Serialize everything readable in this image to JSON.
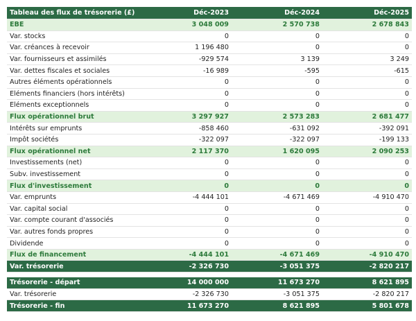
{
  "table": {
    "header": [
      "Tableau des flux de trésorerie (£)",
      "Déc-2023",
      "Déc-2024",
      "Déc-2025"
    ],
    "rows": [
      [
        "EBE",
        "3 048 009",
        "2 570 738",
        "2 678 843"
      ],
      [
        "Var. stocks",
        "0",
        "0",
        "0"
      ],
      [
        "Var. créances à recevoir",
        "1 196 480",
        "0",
        "0"
      ],
      [
        "Var. fournisseurs et assimilés",
        "-929 574",
        "3 139",
        "3 249"
      ],
      [
        "Var. dettes fiscales et sociales",
        "-16 989",
        "-595",
        "-615"
      ],
      [
        "Autres éléments opérationnels",
        "0",
        "0",
        "0"
      ],
      [
        "Eléments financiers (hors intérêts)",
        "0",
        "0",
        "0"
      ],
      [
        "Eléments exceptionnels",
        "0",
        "0",
        "0"
      ],
      [
        "Flux opérationnel brut",
        "3 297 927",
        "2 573 283",
        "2 681 477"
      ],
      [
        "Intérêts sur emprunts",
        "-858 460",
        "-631 092",
        "-392 091"
      ],
      [
        "Impôt sociétés",
        "-322 097",
        "-322 097",
        "-199 133"
      ],
      [
        "Flux opérationnel net",
        "2 117 370",
        "1 620 095",
        "2 090 253"
      ],
      [
        "Investissements (net)",
        "0",
        "0",
        "0"
      ],
      [
        "Subv. investissement",
        "0",
        "0",
        "0"
      ],
      [
        "Flux d'investissement",
        "0",
        "0",
        "0"
      ],
      [
        "Var. emprunts",
        "-4 444 101",
        "-4 671 469",
        "-4 910 470"
      ],
      [
        "Var. capital social",
        "0",
        "0",
        "0"
      ],
      [
        "Var. compte courant d'associés",
        "0",
        "0",
        "0"
      ],
      [
        "Var. autres fonds propres",
        "0",
        "0",
        "0"
      ],
      [
        "Dividende",
        "0",
        "0",
        "0"
      ],
      [
        "Flux de financement",
        "-4 444 101",
        "-4 671 469",
        "-4 910 470"
      ],
      [
        "Var. trésorerie",
        "-2 326 730",
        "-3 051 375",
        "-2 820 217"
      ]
    ],
    "closing": [
      [
        "Trésorerie - départ",
        "14 000 000",
        "11 673 270",
        "8 621 895"
      ],
      [
        "Var. trésorerie",
        "-2 326 730",
        "-3 051 375",
        "-2 820 217"
      ],
      [
        "Trésorerie - fin",
        "11 673 270",
        "8 621 895",
        "5 801 678"
      ]
    ]
  }
}
